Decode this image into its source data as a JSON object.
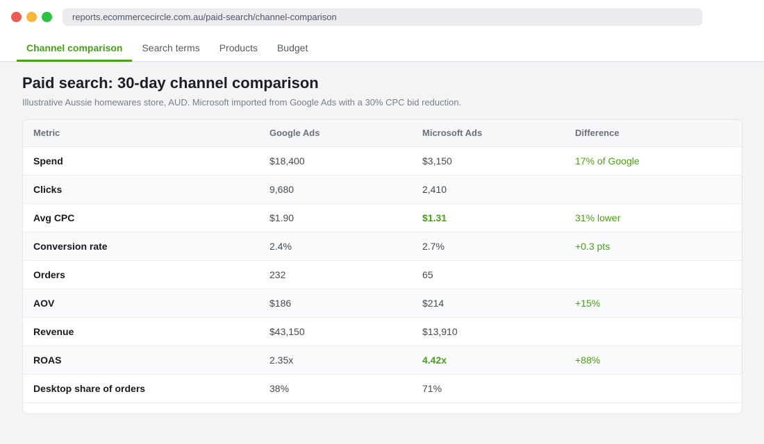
{
  "browser": {
    "url": "reports.ecommercecircle.com.au/paid-search/channel-comparison"
  },
  "tabs": [
    {
      "label": "Channel comparison",
      "active": true
    },
    {
      "label": "Search terms",
      "active": false
    },
    {
      "label": "Products",
      "active": false
    },
    {
      "label": "Budget",
      "active": false
    }
  ],
  "page": {
    "title": "Paid search: 30-day channel comparison",
    "subtitle": "Illustrative Aussie homewares store, AUD. Microsoft imported from Google Ads with a 30% CPC bid reduction."
  },
  "table": {
    "headers": [
      "Metric",
      "Google Ads",
      "Microsoft Ads",
      "Difference"
    ],
    "rows": [
      {
        "metric": "Spend",
        "google": "$18,400",
        "microsoft": "$3,150",
        "difference": "17% of Google"
      },
      {
        "metric": "Clicks",
        "google": "9,680",
        "microsoft": "2,410",
        "difference": ""
      },
      {
        "metric": "Avg CPC",
        "google": "$1.90",
        "microsoft": "$1.31",
        "difference": "31% lower"
      },
      {
        "metric": "Conversion rate",
        "google": "2.4%",
        "microsoft": "2.7%",
        "difference": "+0.3 pts"
      },
      {
        "metric": "Orders",
        "google": "232",
        "microsoft": "65",
        "difference": ""
      },
      {
        "metric": "AOV",
        "google": "$186",
        "microsoft": "$214",
        "difference": "+15%"
      },
      {
        "metric": "Revenue",
        "google": "$43,150",
        "microsoft": "$13,910",
        "difference": ""
      },
      {
        "metric": "ROAS",
        "google": "2.35x",
        "microsoft": "4.42x",
        "difference": "+88%"
      },
      {
        "metric": "Desktop share of orders",
        "google": "38%",
        "microsoft": "71%",
        "difference": ""
      }
    ]
  },
  "colors": {
    "accent": "#4a9f15",
    "page_background": "#f3f4f6"
  }
}
